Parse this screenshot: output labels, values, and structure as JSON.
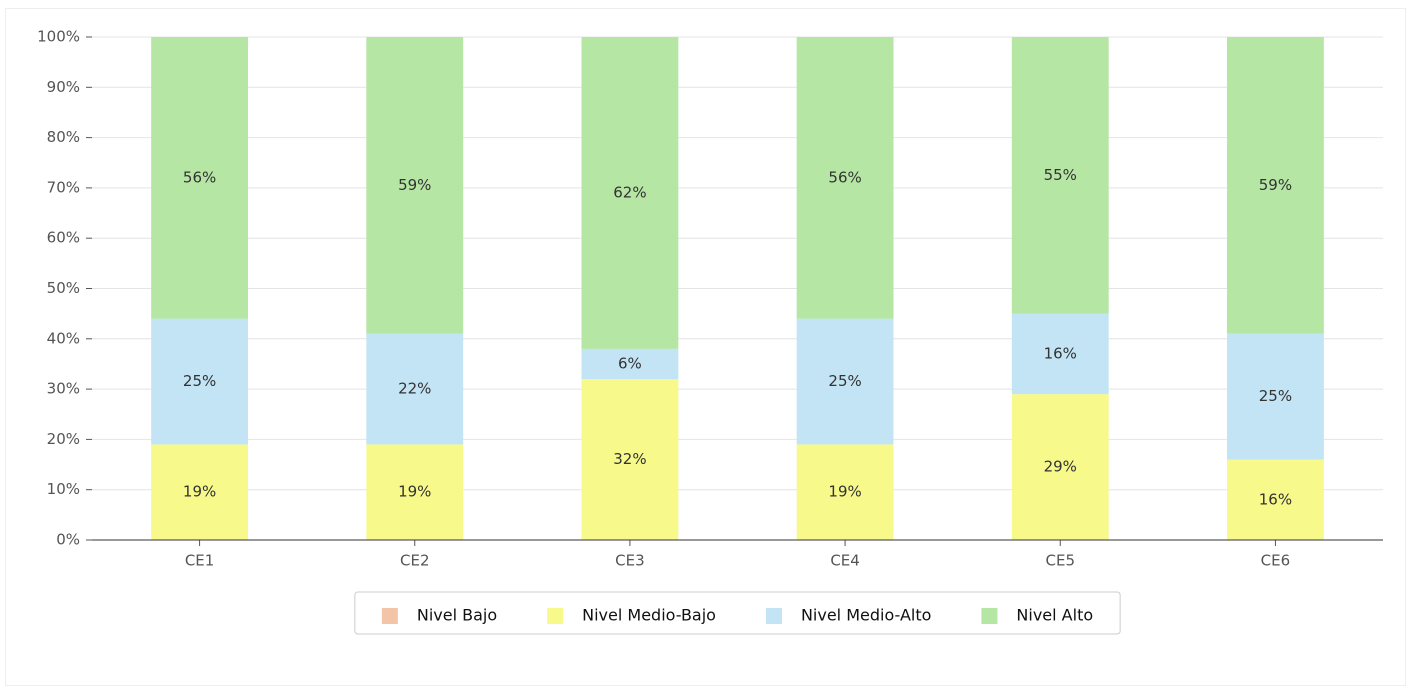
{
  "chart_data": {
    "type": "stacked_bar",
    "categories": [
      "CE1",
      "CE2",
      "CE3",
      "CE4",
      "CE5",
      "CE6"
    ],
    "series": [
      {
        "name": "Nivel Bajo",
        "color": "#f4c4a9",
        "values": [
          0,
          0,
          0,
          0,
          0,
          0
        ]
      },
      {
        "name": "Nivel Medio-Bajo",
        "color": "#f7f98b",
        "values": [
          19,
          19,
          32,
          19,
          29,
          16
        ],
        "value_labels": [
          "19%",
          "19%",
          "32%",
          "19%",
          "29%",
          "16%"
        ]
      },
      {
        "name": "Nivel Medio-Alto",
        "color": "#c2e4f4",
        "values": [
          25,
          22,
          6,
          25,
          16,
          25
        ],
        "value_labels": [
          "25%",
          "22%",
          "6%",
          "25%",
          "16%",
          "25%"
        ]
      },
      {
        "name": "Nivel Alto",
        "color": "#b5e6a4",
        "values": [
          56,
          59,
          62,
          56,
          55,
          59
        ],
        "value_labels": [
          "56%",
          "59%",
          "62%",
          "56%",
          "55%",
          "59%"
        ]
      }
    ],
    "ylim": [
      0,
      100
    ],
    "yticks": [
      {
        "value": 0,
        "label": "0%"
      },
      {
        "value": 10,
        "label": "10%"
      },
      {
        "value": 20,
        "label": "20%"
      },
      {
        "value": 30,
        "label": "30%"
      },
      {
        "value": 40,
        "label": "40%"
      },
      {
        "value": 50,
        "label": "50%"
      },
      {
        "value": 60,
        "label": "60%"
      },
      {
        "value": 70,
        "label": "70%"
      },
      {
        "value": 80,
        "label": "80%"
      },
      {
        "value": 90,
        "label": "90%"
      },
      {
        "value": 100,
        "label": "100%"
      }
    ],
    "grid": true,
    "legend": "bottom"
  }
}
